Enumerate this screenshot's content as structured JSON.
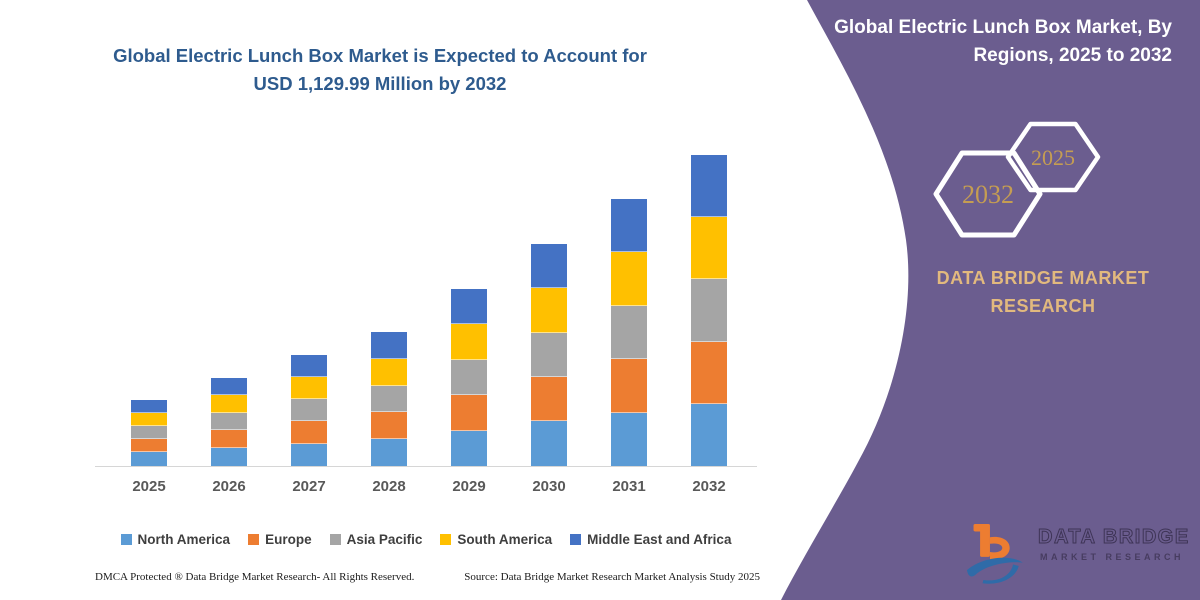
{
  "page": {
    "background": "#ffffff",
    "accent_purple": "#6B5D8F",
    "title_blue": "#2E5B8E",
    "gold_brand": "#E2B97E",
    "gold_hex_text": "#C59D52"
  },
  "main": {
    "title_line1": "Global Electric Lunch Box Market is Expected to Account for",
    "title_line2": "USD 1,129.99 Million by 2032",
    "footer_left": "DMCA Protected ® Data Bridge Market Research-  All Rights Reserved.",
    "footer_right": "Source: Data Bridge Market Research  Market Analysis Study 2025"
  },
  "right_panel": {
    "title_line1": "Global Electric Lunch Box Market, By",
    "title_line2": "Regions, 2025 to 2032",
    "hexagon_back_year": "2032",
    "hexagon_front_year": "2025",
    "brand_line1": "DATA BRIDGE MARKET",
    "brand_line2": "RESEARCH",
    "logo_text_primary": "DATA BRIDGE",
    "logo_text_secondary": "MARKET RESEARCH"
  },
  "chart_data": {
    "type": "bar",
    "stacked": true,
    "title": "Global Electric Lunch Box Market is Expected to Account for USD 1,129.99 Million by 2032",
    "subtitle": "Global Electric Lunch Box Market, By Regions, 2025 to 2032",
    "unit": "USD Million",
    "xlabel": "",
    "ylabel": "",
    "ylim": [
      0,
      1200
    ],
    "grid": false,
    "axis_labels_visible": false,
    "legend_position": "bottom",
    "categories": [
      "2025",
      "2026",
      "2027",
      "2028",
      "2029",
      "2030",
      "2031",
      "2032"
    ],
    "series": [
      {
        "name": "North America",
        "color": "#5B9BD5",
        "values": [
          50,
          66,
          81,
          98,
          129,
          162,
          194,
          226.0
        ]
      },
      {
        "name": "Europe",
        "color": "#ED7D31",
        "values": [
          47,
          64,
          81,
          97,
          129,
          161,
          194,
          226.0
        ]
      },
      {
        "name": "Asia Pacific",
        "color": "#A5A5A5",
        "values": [
          47,
          63,
          80,
          97,
          128,
          161,
          194,
          226.0
        ]
      },
      {
        "name": "South America",
        "color": "#FFC000",
        "values": [
          49,
          64,
          81,
          98,
          129,
          162,
          194,
          226.0
        ]
      },
      {
        "name": "Middle East and Africa",
        "color": "#4472C4",
        "values": [
          47,
          63,
          80,
          97,
          128,
          161,
          194,
          225.99
        ]
      }
    ],
    "totals": [
      240,
      320,
      403,
      487,
      643,
      807,
      970,
      1129.99
    ],
    "annotations": {
      "highlight_value_2032": "USD 1,129.99 Million"
    }
  }
}
